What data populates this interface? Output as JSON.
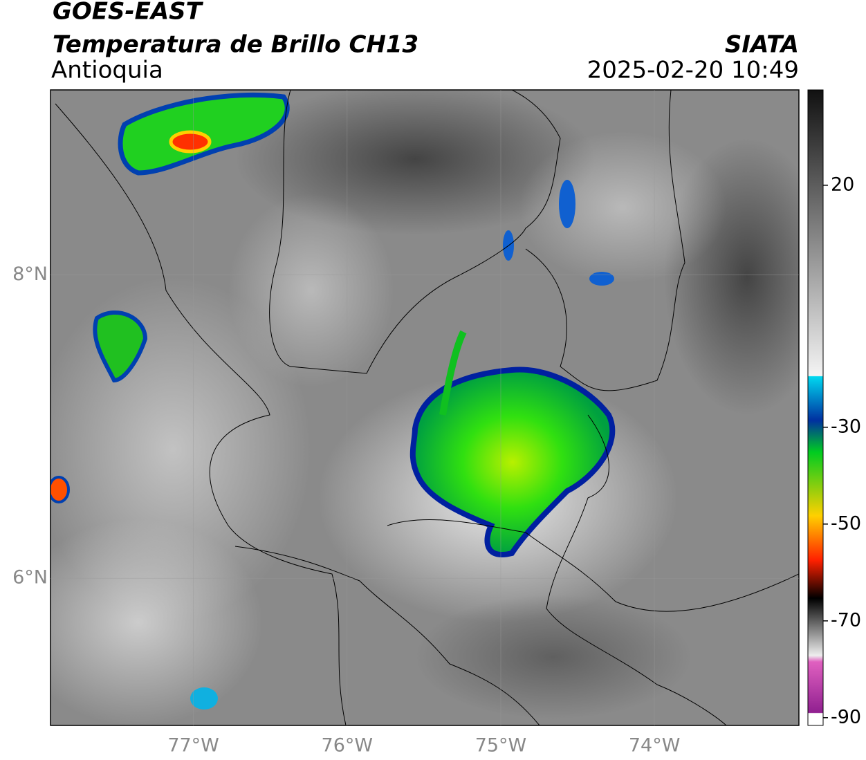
{
  "header": {
    "title": "GOES-EAST",
    "subtitle": "Temperatura de Brillo CH13",
    "region": "Antioquia",
    "source": "SIATA",
    "datetime": "2025-02-20 10:49"
  },
  "map": {
    "xlim": [
      -77.93,
      -73.06
    ],
    "ylim": [
      5.03,
      9.22
    ],
    "xticks": [
      {
        "value": -77,
        "label": "77°W"
      },
      {
        "value": -76,
        "label": "76°W"
      },
      {
        "value": -75,
        "label": "75°W"
      },
      {
        "value": -74,
        "label": "74°W"
      }
    ],
    "yticks": [
      {
        "value": 6,
        "label": "6°N"
      },
      {
        "value": 8,
        "label": "8°N"
      }
    ],
    "grid": true
  },
  "colorbar": {
    "ylim": [
      -91.6,
      39.7
    ],
    "yticks": [
      20,
      -30,
      -50,
      -70,
      -90
    ]
  }
}
